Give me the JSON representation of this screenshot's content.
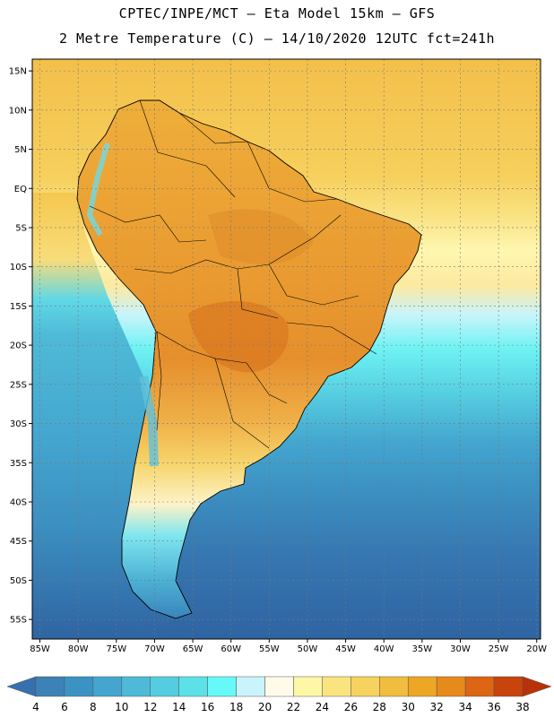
{
  "title": {
    "line1": "CPTEC/INPE/MCT –  Eta Model 15km – GFS",
    "line2": "2 Metre Temperature (C) – 14/10/2020 12UTC fct=241h"
  },
  "map": {
    "lon_range": [
      -86,
      -19.5
    ],
    "lat_range": [
      -57.5,
      16.5
    ],
    "lat_ticks": [
      {
        "value": 15,
        "label": "15N"
      },
      {
        "value": 10,
        "label": "10N"
      },
      {
        "value": 5,
        "label": "5N"
      },
      {
        "value": 0,
        "label": "EQ"
      },
      {
        "value": -5,
        "label": "5S"
      },
      {
        "value": -10,
        "label": "10S"
      },
      {
        "value": -15,
        "label": "15S"
      },
      {
        "value": -20,
        "label": "20S"
      },
      {
        "value": -25,
        "label": "25S"
      },
      {
        "value": -30,
        "label": "30S"
      },
      {
        "value": -35,
        "label": "35S"
      },
      {
        "value": -40,
        "label": "40S"
      },
      {
        "value": -45,
        "label": "45S"
      },
      {
        "value": -50,
        "label": "50S"
      },
      {
        "value": -55,
        "label": "55S"
      }
    ],
    "lon_ticks": [
      {
        "value": -85,
        "label": "85W"
      },
      {
        "value": -80,
        "label": "80W"
      },
      {
        "value": -75,
        "label": "75W"
      },
      {
        "value": -70,
        "label": "70W"
      },
      {
        "value": -65,
        "label": "65W"
      },
      {
        "value": -60,
        "label": "60W"
      },
      {
        "value": -55,
        "label": "55W"
      },
      {
        "value": -50,
        "label": "50W"
      },
      {
        "value": -45,
        "label": "45W"
      },
      {
        "value": -40,
        "label": "40W"
      },
      {
        "value": -35,
        "label": "35W"
      },
      {
        "value": -30,
        "label": "30W"
      },
      {
        "value": -25,
        "label": "25W"
      },
      {
        "value": -20,
        "label": "20W"
      }
    ]
  },
  "colorbar": {
    "labels": [
      "4",
      "6",
      "8",
      "10",
      "12",
      "14",
      "16",
      "18",
      "20",
      "22",
      "24",
      "26",
      "28",
      "30",
      "32",
      "34",
      "36",
      "38"
    ],
    "colors": [
      "#3671ad",
      "#3d82b7",
      "#3b93c4",
      "#44a6cf",
      "#4fbad7",
      "#55cde0",
      "#5de1e8",
      "#66f9f7",
      "#c9f4fb",
      "#fffbe8",
      "#fef7a6",
      "#fae480",
      "#f6d25e",
      "#f1bd3f",
      "#eda724",
      "#e68a1c",
      "#dc6613",
      "#c9430d",
      "#b83209"
    ]
  },
  "colors": {
    "land_hot": "#e59a3a",
    "ocean_warm": "#f4c84f",
    "ocean_cold": "#3671ad"
  }
}
